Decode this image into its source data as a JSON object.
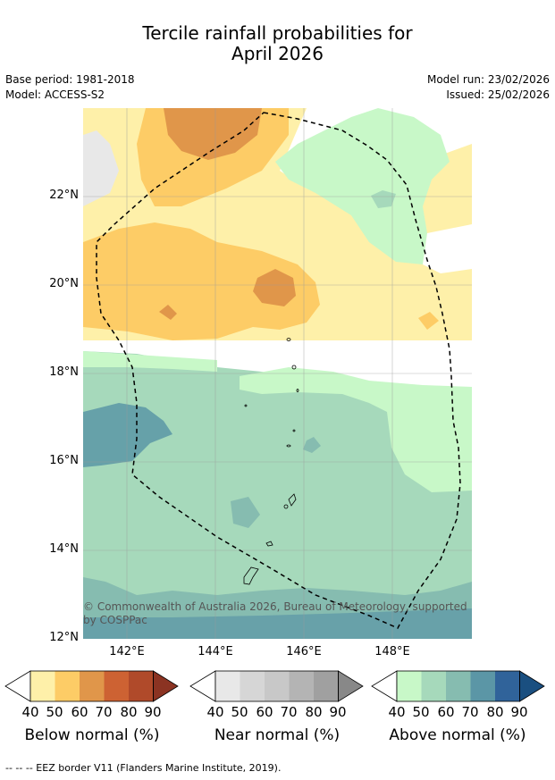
{
  "title_line1": "Tercile rainfall probabilities for",
  "title_line2": "April 2026",
  "base_period": "Base period: 1981-2018",
  "model": "Model: ACCESS-S2",
  "model_run": "Model run: 23/02/2026",
  "issued": "Issued: 25/02/2026",
  "map": {
    "lat_labels": [
      "22°N",
      "20°N",
      "18°N",
      "16°N",
      "14°N",
      "12°N"
    ],
    "lon_labels": [
      "142°E",
      "144°E",
      "146°E",
      "148°E"
    ],
    "copyright_line1": "© Commonwealth of Australia 2026, Bureau of Meteorology, supported",
    "copyright_line2": "by COSPPac"
  },
  "colorbars": {
    "ticks": [
      "40",
      "50",
      "60",
      "70",
      "80",
      "90"
    ],
    "below": {
      "label": "Below normal (%)",
      "colors": [
        "#fef0a9",
        "#fdcc66",
        "#e0964a",
        "#cd6233",
        "#b04a2a",
        "#8b3322"
      ]
    },
    "near": {
      "label": "Near normal (%)",
      "colors": [
        "#e8e8e8",
        "#d6d6d6",
        "#c8c8c8",
        "#b4b4b4",
        "#a0a0a0",
        "#888888"
      ]
    },
    "above": {
      "label": "Above normal (%)",
      "colors": [
        "#c8f8c8",
        "#a6d9bb",
        "#86bcb0",
        "#5b96a6",
        "#30639a",
        "#1a4f80"
      ]
    }
  },
  "footer": "--  --  -- EEZ border V11 (Flanders Marine Institute, 2019)."
}
